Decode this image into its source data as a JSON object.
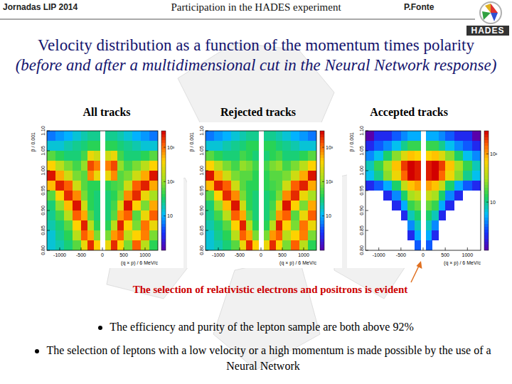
{
  "header": {
    "conference": "Jornadas LIP 2014",
    "title": "Participation in the HADES experiment",
    "author": "P.Fonte",
    "logo": "HADES"
  },
  "title": "Velocity distribution as a function of the momentum times polarity",
  "title_note": "(before and after a multidimensional cut in the Neural Network response)",
  "annotation": "The selection of relativistic electrons and positrons is evident",
  "bullets": [
    "The efficiency and purity of the lepton sample are both above 92%",
    "The selection of leptons with a low velocity or a high momentum is made possible by the use of a Neural Network"
  ],
  "chart_data": [
    {
      "type": "heatmap",
      "title": "All tracks",
      "x_label": "(q × p) / 6 MeV/c",
      "y_label": "β / 0.001",
      "xlim": [
        -1300,
        1300
      ],
      "ylim": [
        0.8,
        1.1
      ],
      "xticks": [
        -1000,
        -500,
        0,
        500,
        1000
      ],
      "yticks": [
        {
          "value": 0.8,
          "label": "0.80"
        },
        {
          "value": 0.85,
          "label": "0.85"
        },
        {
          "value": 0.9,
          "label": "0.90"
        },
        {
          "value": 0.95,
          "label": "0.95"
        },
        {
          "value": 1.0,
          "label": "1.00"
        },
        {
          "value": 1.05,
          "label": "1.05"
        },
        {
          "value": 1.1,
          "label": "1.10"
        }
      ],
      "x_bins": [
        -1300,
        -1100,
        -900,
        -700,
        -500,
        -350,
        -200,
        -60,
        60,
        200,
        350,
        500,
        700,
        900,
        1100,
        1300
      ],
      "y_bins": [
        0.8,
        0.825,
        0.85,
        0.875,
        0.9,
        0.925,
        0.95,
        0.975,
        1.0,
        1.025,
        1.05,
        1.075,
        1.1
      ],
      "cells": [
        [
          15,
          20,
          30,
          60,
          300,
          2000,
          400,
          null,
          300,
          2000,
          400,
          80,
          1200,
          150,
          40
        ],
        [
          15,
          25,
          40,
          150,
          1200,
          600,
          80,
          null,
          80,
          700,
          1200,
          150,
          400,
          900,
          80
        ],
        [
          20,
          30,
          60,
          400,
          2200,
          150,
          40,
          null,
          40,
          150,
          2200,
          400,
          80,
          1000,
          300
        ],
        [
          25,
          50,
          150,
          1200,
          600,
          60,
          30,
          null,
          30,
          60,
          700,
          1200,
          60,
          300,
          1200
        ],
        [
          30,
          100,
          500,
          2500,
          200,
          40,
          30,
          null,
          30,
          50,
          250,
          2500,
          400,
          80,
          600
        ],
        [
          60,
          400,
          2000,
          800,
          80,
          40,
          30,
          null,
          30,
          40,
          80,
          800,
          2000,
          300,
          120
        ],
        [
          500,
          2200,
          1200,
          200,
          60,
          40,
          40,
          null,
          40,
          50,
          60,
          200,
          1200,
          2200,
          600
        ],
        [
          2500,
          600,
          200,
          80,
          60,
          800,
          300,
          null,
          300,
          800,
          60,
          80,
          200,
          600,
          2500
        ],
        [
          400,
          150,
          80,
          50,
          100,
          1500,
          900,
          null,
          900,
          1500,
          100,
          50,
          80,
          150,
          400
        ],
        [
          60,
          40,
          30,
          30,
          50,
          300,
          200,
          null,
          200,
          300,
          50,
          30,
          30,
          40,
          60
        ],
        [
          15,
          15,
          20,
          25,
          30,
          40,
          40,
          null,
          40,
          40,
          30,
          25,
          20,
          15,
          15
        ],
        [
          6,
          8,
          10,
          15,
          20,
          25,
          25,
          null,
          25,
          25,
          20,
          15,
          10,
          8,
          6
        ]
      ],
      "colorbar": {
        "range": [
          1,
          3000
        ],
        "ticks": [
          10,
          {
            "value": 100,
            "label": "10²"
          },
          {
            "value": 1000,
            "label": "10³"
          }
        ]
      }
    },
    {
      "type": "heatmap",
      "title": "Rejected tracks",
      "x_label": "(q × p) / 6 MeV/c",
      "y_label": "β / 0.001",
      "xlim": [
        -1300,
        1300
      ],
      "ylim": [
        0.8,
        1.1
      ],
      "xticks": [
        -1000,
        -500,
        0,
        500,
        1000
      ],
      "yticks": [
        {
          "value": 0.8,
          "label": "0.80"
        },
        {
          "value": 0.85,
          "label": "0.85"
        },
        {
          "value": 0.9,
          "label": "0.90"
        },
        {
          "value": 0.95,
          "label": "0.95"
        },
        {
          "value": 1.0,
          "label": "1.00"
        },
        {
          "value": 1.05,
          "label": "1.05"
        },
        {
          "value": 1.1,
          "label": "1.10"
        }
      ],
      "x_bins": [
        -1300,
        -1100,
        -900,
        -700,
        -500,
        -350,
        -200,
        -60,
        60,
        200,
        350,
        500,
        700,
        900,
        1100,
        1300
      ],
      "y_bins": [
        0.8,
        0.825,
        0.85,
        0.875,
        0.9,
        0.925,
        0.95,
        0.975,
        1.0,
        1.025,
        1.05,
        1.075,
        1.1
      ],
      "cells": [
        [
          15,
          20,
          30,
          60,
          300,
          2000,
          400,
          null,
          300,
          2000,
          400,
          80,
          1200,
          150,
          40
        ],
        [
          15,
          25,
          40,
          150,
          1200,
          600,
          80,
          null,
          80,
          700,
          1200,
          150,
          400,
          900,
          80
        ],
        [
          20,
          30,
          60,
          400,
          2200,
          150,
          40,
          null,
          40,
          150,
          2200,
          400,
          80,
          1000,
          300
        ],
        [
          25,
          50,
          150,
          1200,
          600,
          60,
          30,
          null,
          30,
          60,
          700,
          1200,
          60,
          300,
          1200
        ],
        [
          30,
          100,
          500,
          2500,
          200,
          40,
          30,
          null,
          30,
          50,
          250,
          2500,
          400,
          80,
          600
        ],
        [
          60,
          400,
          2000,
          800,
          80,
          40,
          30,
          null,
          30,
          40,
          80,
          800,
          2000,
          300,
          120
        ],
        [
          500,
          2200,
          1200,
          200,
          60,
          40,
          40,
          null,
          40,
          50,
          60,
          200,
          1200,
          2200,
          600
        ],
        [
          2500,
          600,
          200,
          80,
          60,
          60,
          40,
          null,
          40,
          60,
          60,
          80,
          200,
          600,
          2500
        ],
        [
          400,
          150,
          80,
          50,
          100,
          80,
          50,
          null,
          50,
          80,
          100,
          50,
          80,
          150,
          400
        ],
        [
          60,
          40,
          30,
          30,
          50,
          40,
          30,
          null,
          30,
          40,
          50,
          30,
          30,
          40,
          60
        ],
        [
          15,
          15,
          20,
          25,
          30,
          40,
          40,
          null,
          40,
          40,
          30,
          25,
          20,
          15,
          15
        ],
        [
          6,
          8,
          10,
          15,
          20,
          25,
          25,
          null,
          25,
          25,
          20,
          15,
          10,
          8,
          6
        ]
      ],
      "colorbar": {
        "range": [
          1,
          3000
        ],
        "ticks": [
          10,
          {
            "value": 100,
            "label": "10²"
          },
          {
            "value": 1000,
            "label": "10³"
          }
        ]
      }
    },
    {
      "type": "heatmap",
      "title": "Accepted tracks",
      "x_label": "(q × p) / 6 MeV/c",
      "y_label": "β / 0.001",
      "xlim": [
        -1300,
        1300
      ],
      "ylim": [
        0.8,
        1.1
      ],
      "xticks": [
        -1000,
        -500,
        0,
        500,
        1000
      ],
      "yticks": [
        {
          "value": 0.8,
          "label": "0.80"
        },
        {
          "value": 0.85,
          "label": "0.85"
        },
        {
          "value": 0.9,
          "label": "0.90"
        },
        {
          "value": 0.95,
          "label": "0.95"
        },
        {
          "value": 1.0,
          "label": "1.00"
        },
        {
          "value": 1.05,
          "label": "1.05"
        },
        {
          "value": 1.1,
          "label": "1.10"
        }
      ],
      "x_bins": [
        -1300,
        -1100,
        -900,
        -700,
        -500,
        -350,
        -200,
        -60,
        60,
        200,
        350,
        500,
        700,
        900,
        1100,
        1300
      ],
      "y_bins": [
        0.8,
        0.825,
        0.85,
        0.875,
        0.9,
        0.925,
        0.95,
        0.975,
        1.0,
        1.025,
        1.05,
        1.075,
        1.1
      ],
      "cells": [
        [
          null,
          null,
          null,
          null,
          null,
          null,
          3,
          null,
          3,
          null,
          null,
          null,
          null,
          null,
          null
        ],
        [
          null,
          null,
          null,
          null,
          null,
          2,
          5,
          null,
          5,
          2,
          null,
          null,
          null,
          null,
          null
        ],
        [
          null,
          null,
          null,
          null,
          null,
          4,
          8,
          null,
          8,
          4,
          null,
          null,
          null,
          null,
          null
        ],
        [
          null,
          null,
          null,
          null,
          2,
          8,
          12,
          null,
          12,
          8,
          2,
          null,
          null,
          null,
          null
        ],
        [
          null,
          null,
          null,
          2,
          5,
          15,
          20,
          null,
          20,
          15,
          5,
          2,
          null,
          null,
          null
        ],
        [
          null,
          null,
          2,
          4,
          12,
          30,
          40,
          null,
          40,
          30,
          12,
          4,
          2,
          null,
          null
        ],
        [
          2,
          3,
          5,
          12,
          40,
          80,
          100,
          null,
          100,
          80,
          40,
          12,
          5,
          3,
          2
        ],
        [
          6,
          10,
          25,
          60,
          150,
          300,
          250,
          null,
          250,
          300,
          150,
          60,
          25,
          10,
          6
        ],
        [
          8,
          15,
          30,
          80,
          200,
          300,
          250,
          null,
          250,
          300,
          200,
          80,
          30,
          15,
          8
        ],
        [
          4,
          6,
          12,
          25,
          50,
          80,
          70,
          null,
          70,
          80,
          50,
          25,
          12,
          6,
          4
        ],
        [
          2,
          3,
          4,
          6,
          10,
          15,
          15,
          null,
          15,
          15,
          10,
          6,
          4,
          3,
          2
        ],
        [
          1,
          2,
          2,
          3,
          4,
          5,
          5,
          null,
          5,
          5,
          4,
          3,
          2,
          2,
          1
        ]
      ],
      "colorbar": {
        "range": [
          1,
          300
        ],
        "ticks": [
          10,
          {
            "value": 100,
            "label": "10²"
          }
        ]
      }
    }
  ]
}
